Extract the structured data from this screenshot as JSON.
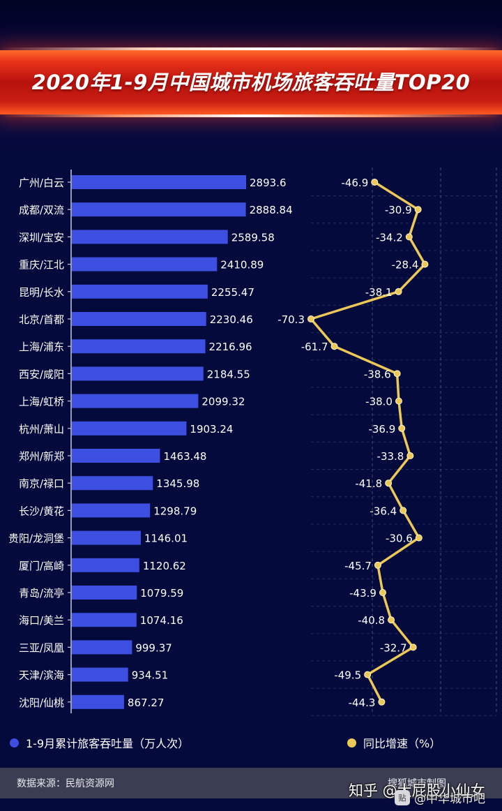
{
  "title": "2020年1-9月中国城市机场旅客吞吐量TOP20",
  "colors": {
    "background": "#050a3c",
    "bar": "#3d4fe0",
    "line": "#ecc858",
    "text": "#ffffff",
    "grid": "#3a4370",
    "banner": "#c81e12"
  },
  "chart_data": {
    "type": "bar",
    "orientation": "horizontal",
    "categories": [
      "广州/白云",
      "成都/双流",
      "深圳/宝安",
      "重庆/江北",
      "昆明/长水",
      "北京/首都",
      "上海/浦东",
      "西安/咸阳",
      "上海/虹桥",
      "杭州/萧山",
      "郑州/新郑",
      "南京/禄口",
      "长沙/黄花",
      "贵阳/龙洞堡",
      "厦门/高崎",
      "青岛/流亭",
      "海口/美兰",
      "三亚/凤凰",
      "天津/滨海",
      "沈阳/仙桃"
    ],
    "series": [
      {
        "name": "1-9月累计旅客吞吐量（万人次）",
        "type": "bar",
        "values": [
          2893.6,
          2888.84,
          2589.58,
          2410.89,
          2255.47,
          2230.46,
          2216.96,
          2184.55,
          2099.32,
          1903.24,
          1463.48,
          1345.98,
          1298.79,
          1146.01,
          1120.62,
          1079.59,
          1074.16,
          999.37,
          934.51,
          867.27
        ],
        "labels": [
          "2893.6",
          "2888.84",
          "2589.58",
          "2410.89",
          "2255.47",
          "2230.46",
          "2216.96",
          "2184.55",
          "2099.32",
          "1903.24",
          "1463.48",
          "1345.98",
          "1298.79",
          "1146.01",
          "1120.62",
          "1079.59",
          "1074.16",
          "999.37",
          "934.51",
          "867.27"
        ]
      },
      {
        "name": "同比增速（%）",
        "type": "line",
        "values": [
          -46.9,
          -30.9,
          -34.2,
          -28.4,
          -38.1,
          -70.3,
          -61.7,
          -38.6,
          -38.0,
          -36.9,
          -33.8,
          -41.8,
          -36.4,
          -30.6,
          -45.7,
          -43.9,
          -40.8,
          -32.7,
          -49.5,
          -44.3
        ],
        "labels": [
          "-46.9",
          "-30.9",
          "-34.2",
          "-28.4",
          "-38.1",
          "-70.3",
          "-61.7",
          "-38.6",
          "-38.0",
          "-36.9",
          "-33.8",
          "-41.8",
          "-36.4",
          "-30.6",
          "-45.7",
          "-43.9",
          "-40.8",
          "-32.7",
          "-49.5",
          "-44.3"
        ]
      }
    ],
    "legend": [
      "1-9月累计旅客吞吐量（万人次）",
      "同比增速（%）"
    ],
    "legend_position": "bottom",
    "grid": true
  },
  "legend": {
    "bar_label": "1-9月累计旅客吞吐量（万人次）",
    "line_label": "同比增速（%）"
  },
  "footer": {
    "source": "数据来源：民航资源网",
    "credit": "搜狐城市制图"
  },
  "watermark": {
    "zhihu": "知乎 @大屁股小仙女",
    "tieba_icon": "贴",
    "tieba": "@中华城市吧"
  }
}
